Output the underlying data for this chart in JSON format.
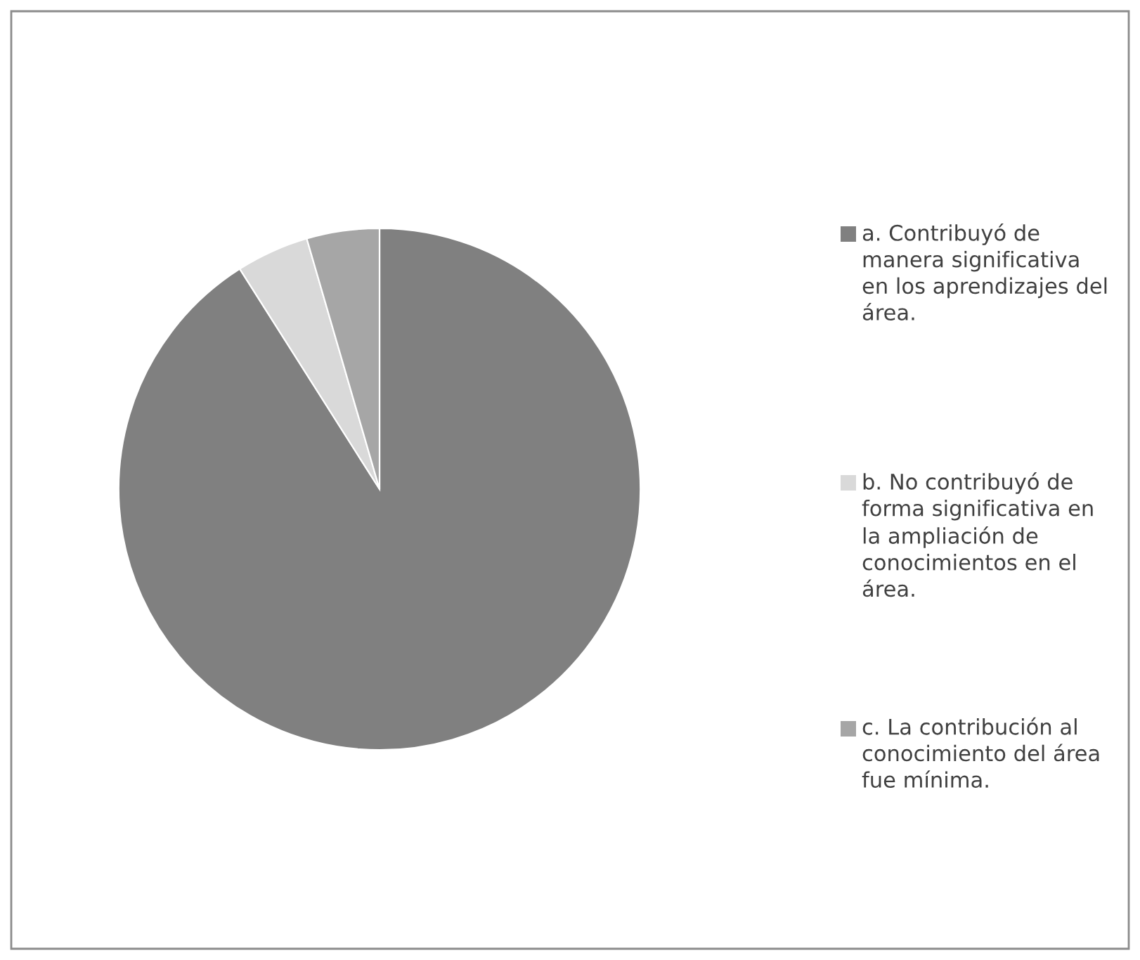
{
  "chart_data": {
    "type": "pie",
    "categories": [
      "a. Contribuyó de manera significativa en los aprendizajes del área.",
      "b. No contribuyó de forma significativa en la ampliación de conocimientos en el área.",
      "c. La contribución al conocimiento del área fue mínima."
    ],
    "values": [
      91,
      4.5,
      4.5
    ],
    "colors": [
      "#808080",
      "#d9d9d9",
      "#a6a6a6"
    ],
    "legend": "right"
  }
}
